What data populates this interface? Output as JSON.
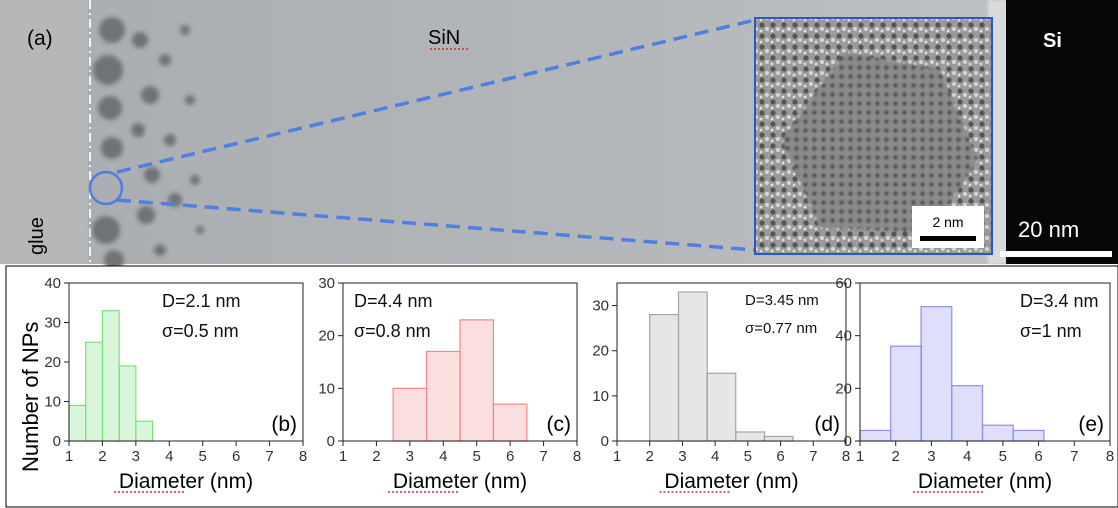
{
  "tem": {
    "panel_label": "(a)",
    "sin_label": "SiN",
    "si_label": "Si",
    "glue_label": "glue",
    "inset_scale_label": "2 nm",
    "main_scale_label": "20 nm"
  },
  "histograms": {
    "ylabel": "Number of NPs",
    "xlabel": "Diameter (nm)"
  },
  "chart_data": [
    {
      "type": "bar",
      "panel": "(b)",
      "color": "#7be07b",
      "stats": [
        "D=2.1 nm",
        "σ=0.5 nm"
      ],
      "xlabel": "Diameter (nm)",
      "ylabel": "Number of NPs",
      "xlim": [
        1,
        8
      ],
      "ylim": [
        0,
        40
      ],
      "xticks": [
        1,
        2,
        3,
        4,
        5,
        6,
        7,
        8
      ],
      "yticks": [
        0,
        10,
        20,
        30,
        40
      ],
      "bin_width": 0.5,
      "bins": [
        {
          "x": 1.0,
          "value": 9
        },
        {
          "x": 1.5,
          "value": 25
        },
        {
          "x": 2.0,
          "value": 33
        },
        {
          "x": 2.5,
          "value": 19
        },
        {
          "x": 3.0,
          "value": 5
        }
      ]
    },
    {
      "type": "bar",
      "panel": "(c)",
      "color": "#f08a8a",
      "stats": [
        "D=4.4 nm",
        "σ=0.8 nm"
      ],
      "xlabel": "Diameter (nm)",
      "ylabel": "",
      "xlim": [
        1,
        8
      ],
      "ylim": [
        0,
        30
      ],
      "xticks": [
        1,
        2,
        3,
        4,
        5,
        6,
        7,
        8
      ],
      "yticks": [
        0,
        10,
        20,
        30
      ],
      "bin_width": 1.0,
      "bins": [
        {
          "x": 2.5,
          "value": 10
        },
        {
          "x": 3.5,
          "value": 17
        },
        {
          "x": 4.5,
          "value": 23
        },
        {
          "x": 5.5,
          "value": 7
        }
      ]
    },
    {
      "type": "bar",
      "panel": "(d)",
      "color": "#a5a5a5",
      "stats": [
        "D=3.45 nm",
        "σ=0.77 nm"
      ],
      "xlabel": "Diameter (nm)",
      "ylabel": "",
      "xlim": [
        1,
        8
      ],
      "ylim": [
        0,
        35
      ],
      "xticks": [
        1,
        2,
        3,
        4,
        5,
        6,
        7,
        8
      ],
      "yticks": [
        0,
        10,
        20,
        30
      ],
      "bin_width": 0.88,
      "bins": [
        {
          "x": 2.0,
          "value": 28
        },
        {
          "x": 2.88,
          "value": 33
        },
        {
          "x": 3.75,
          "value": 15
        },
        {
          "x": 4.63,
          "value": 2
        },
        {
          "x": 5.5,
          "value": 1
        }
      ]
    },
    {
      "type": "bar",
      "panel": "(e)",
      "color": "#8d8df0",
      "stats": [
        "D=3.4 nm",
        "σ=1 nm"
      ],
      "xlabel": "Diameter (nm)",
      "ylabel": "",
      "xlim": [
        1,
        8
      ],
      "ylim": [
        0,
        60
      ],
      "xticks": [
        1,
        2,
        3,
        4,
        5,
        6,
        7,
        8
      ],
      "yticks": [
        0,
        20,
        40,
        60
      ],
      "bin_width": 0.86,
      "bins": [
        {
          "x": 1.0,
          "value": 4
        },
        {
          "x": 1.86,
          "value": 36
        },
        {
          "x": 2.71,
          "value": 51
        },
        {
          "x": 3.57,
          "value": 21
        },
        {
          "x": 4.43,
          "value": 6
        },
        {
          "x": 5.29,
          "value": 4
        }
      ]
    }
  ]
}
